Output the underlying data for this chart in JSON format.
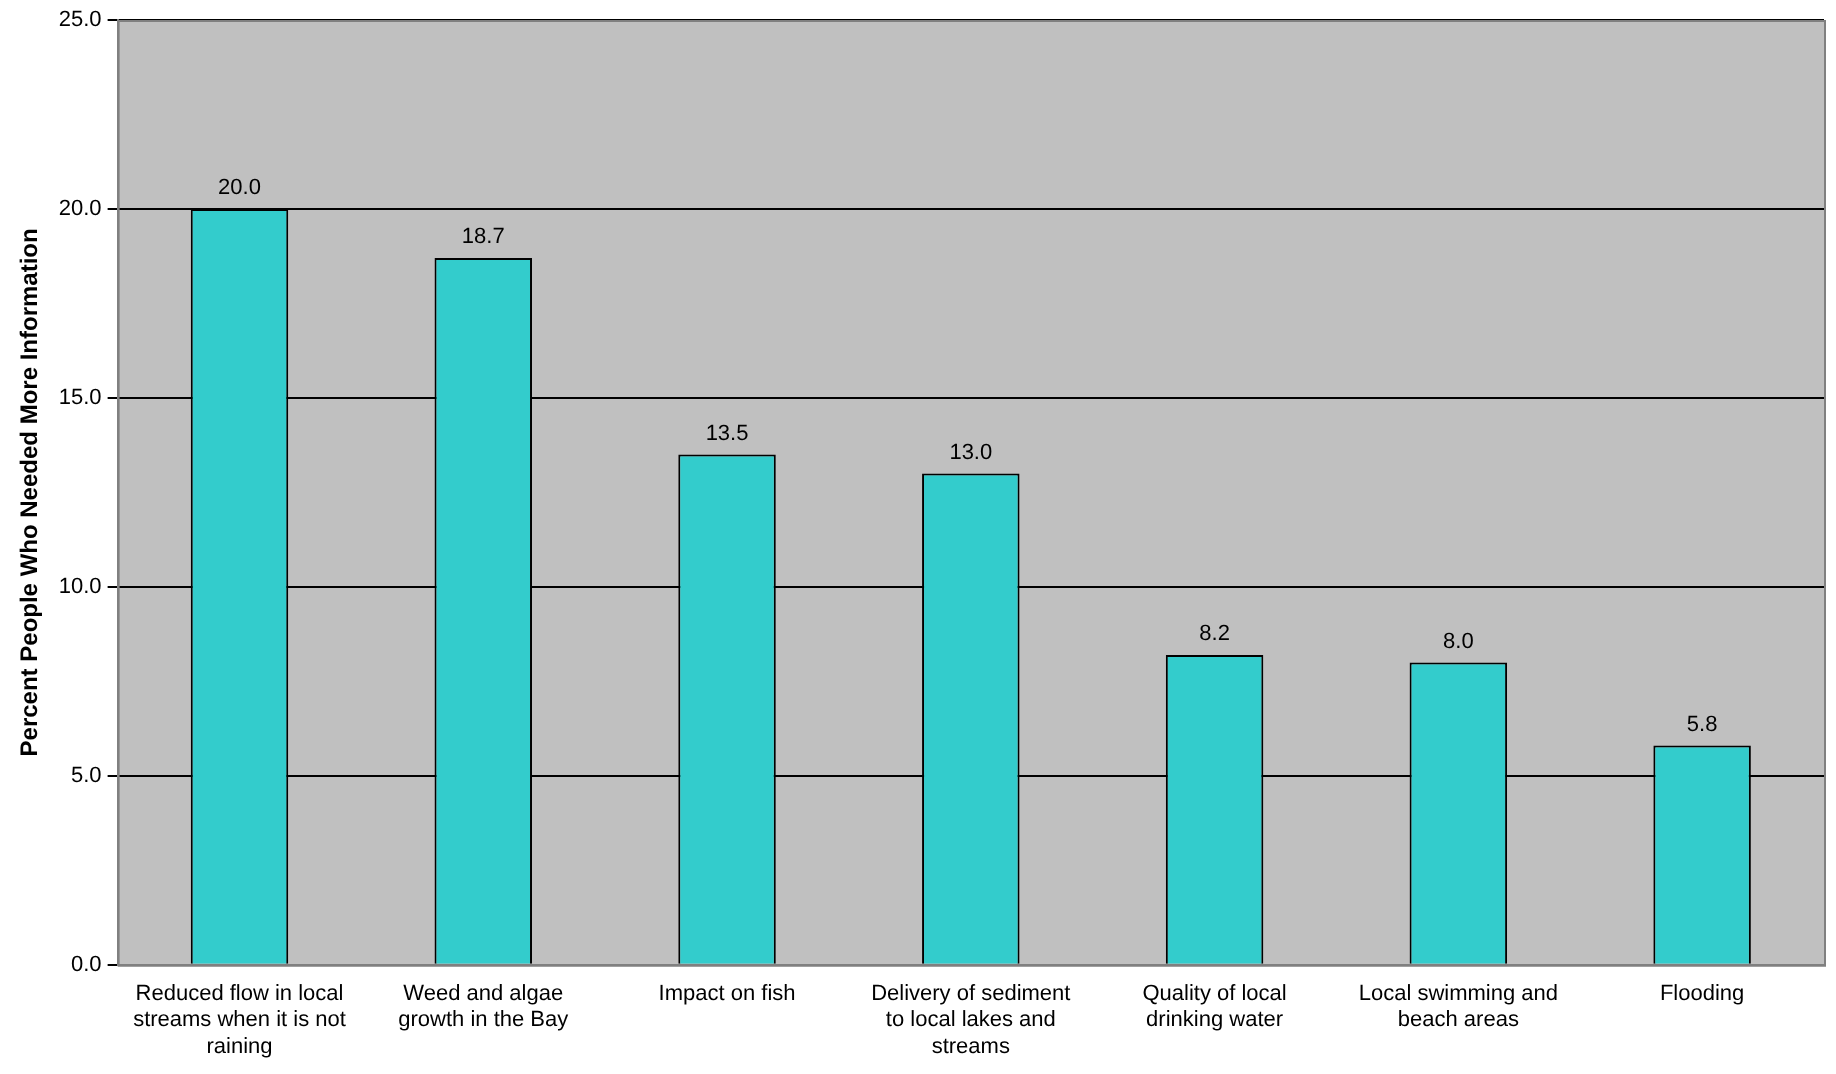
{
  "chart_data": {
    "type": "bar",
    "ylabel": "Percent People Who Needed More Information",
    "categories": [
      "Reduced flow in local streams when it is not raining",
      "Weed and algae growth in the Bay",
      "Impact on fish",
      "Delivery of sediment to local lakes and streams",
      "Quality of local drinking water",
      "Local swimming and beach areas",
      "Flooding"
    ],
    "values": [
      20.0,
      18.7,
      13.5,
      13.0,
      8.2,
      8.0,
      5.8
    ],
    "value_labels": [
      "20.0",
      "18.7",
      "13.5",
      "13.0",
      "8.2",
      "8.0",
      "5.8"
    ],
    "color": "#33cccc",
    "ylim": [
      0,
      25
    ],
    "yticks": [
      {
        "value": 0,
        "label": "0.0"
      },
      {
        "value": 5,
        "label": "5.0"
      },
      {
        "value": 10,
        "label": "10.0"
      },
      {
        "value": 15,
        "label": "15.0"
      },
      {
        "value": 20,
        "label": "20.0"
      },
      {
        "value": 25,
        "label": "25.0"
      }
    ],
    "grid": "y",
    "legend": false
  }
}
